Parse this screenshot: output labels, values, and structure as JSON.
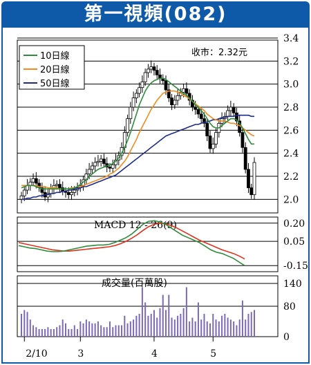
{
  "title": "第一視頻(082)",
  "chart_data": [
    {
      "type": "candlestick",
      "annotation": "收市：2.32元",
      "legend": [
        {
          "label": "10日線",
          "color": "#2e8b3a"
        },
        {
          "label": "20日線",
          "color": "#f28a1e"
        },
        {
          "label": "50日線",
          "color": "#1c2a8c"
        }
      ],
      "legend_position": "top-left",
      "y_ticks": [
        "3.4",
        "3.2",
        "3.0",
        "2.8",
        "2.6",
        "2.4",
        "2.2",
        "2.0"
      ],
      "ylim": [
        1.9,
        3.4
      ],
      "grid": true,
      "closes": [
        2.03,
        2.08,
        2.12,
        2.15,
        2.18,
        2.14,
        2.1,
        2.06,
        2.02,
        2.05,
        2.09,
        2.12,
        2.13,
        2.1,
        2.07,
        2.06,
        2.04,
        2.06,
        2.08,
        2.1,
        2.12,
        2.17,
        2.22,
        2.26,
        2.29,
        2.32,
        2.33,
        2.35,
        2.31,
        2.28,
        2.27,
        2.3,
        2.34,
        2.38,
        2.45,
        2.58,
        2.7,
        2.8,
        2.88,
        2.92,
        2.97,
        3.02,
        3.1,
        3.13,
        3.15,
        3.12,
        3.08,
        3.05,
        3.03,
        2.95,
        2.88,
        2.82,
        2.86,
        2.9,
        2.93,
        2.96,
        2.92,
        2.86,
        2.8,
        2.78,
        2.74,
        2.7,
        2.66,
        2.55,
        2.44,
        2.48,
        2.58,
        2.66,
        2.7,
        2.72,
        2.77,
        2.8,
        2.75,
        2.68,
        2.58,
        2.45,
        2.26,
        2.1,
        2.04,
        2.32
      ],
      "ma10": [
        2.1,
        2.11,
        2.12,
        2.12,
        2.12,
        2.11,
        2.1,
        2.09,
        2.09,
        2.09,
        2.09,
        2.09,
        2.09,
        2.09,
        2.09,
        2.09,
        2.09,
        2.09,
        2.1,
        2.11,
        2.13,
        2.15,
        2.17,
        2.2,
        2.22,
        2.24,
        2.26,
        2.27,
        2.28,
        2.29,
        2.3,
        2.31,
        2.33,
        2.36,
        2.4,
        2.45,
        2.51,
        2.58,
        2.66,
        2.74,
        2.82,
        2.88,
        2.94,
        2.98,
        3.01,
        3.03,
        3.04,
        3.05,
        3.05,
        3.04,
        3.02,
        3.0,
        2.98,
        2.96,
        2.94,
        2.92,
        2.9,
        2.88,
        2.85,
        2.82,
        2.8,
        2.77,
        2.74,
        2.7,
        2.66,
        2.63,
        2.62,
        2.62,
        2.64,
        2.66,
        2.68,
        2.7,
        2.7,
        2.69,
        2.66,
        2.62,
        2.57,
        2.52,
        2.48,
        2.48
      ],
      "ma20": [
        2.12,
        2.12,
        2.12,
        2.12,
        2.12,
        2.12,
        2.11,
        2.11,
        2.11,
        2.1,
        2.1,
        2.1,
        2.1,
        2.09,
        2.09,
        2.09,
        2.09,
        2.1,
        2.1,
        2.11,
        2.11,
        2.12,
        2.13,
        2.14,
        2.15,
        2.16,
        2.17,
        2.18,
        2.19,
        2.2,
        2.22,
        2.23,
        2.25,
        2.27,
        2.3,
        2.33,
        2.37,
        2.42,
        2.47,
        2.52,
        2.58,
        2.63,
        2.68,
        2.73,
        2.78,
        2.82,
        2.86,
        2.89,
        2.92,
        2.93,
        2.94,
        2.94,
        2.94,
        2.93,
        2.92,
        2.9,
        2.89,
        2.87,
        2.85,
        2.83,
        2.81,
        2.79,
        2.77,
        2.74,
        2.72,
        2.7,
        2.69,
        2.68,
        2.68,
        2.68,
        2.67,
        2.66,
        2.66,
        2.65,
        2.64,
        2.62,
        2.6,
        2.58,
        2.56,
        2.55
      ],
      "ma50": [
        2.0,
        2.0,
        2.01,
        2.01,
        2.02,
        2.02,
        2.03,
        2.03,
        2.04,
        2.04,
        2.05,
        2.05,
        2.06,
        2.06,
        2.07,
        2.07,
        2.08,
        2.08,
        2.09,
        2.09,
        2.1,
        2.11,
        2.11,
        2.12,
        2.13,
        2.14,
        2.15,
        2.16,
        2.17,
        2.18,
        2.19,
        2.2,
        2.21,
        2.23,
        2.25,
        2.27,
        2.29,
        2.31,
        2.33,
        2.35,
        2.37,
        2.39,
        2.41,
        2.43,
        2.45,
        2.47,
        2.49,
        2.51,
        2.53,
        2.55,
        2.56,
        2.57,
        2.58,
        2.59,
        2.6,
        2.61,
        2.62,
        2.63,
        2.64,
        2.65,
        2.65,
        2.66,
        2.67,
        2.67,
        2.68,
        2.69,
        2.69,
        2.7,
        2.71,
        2.71,
        2.72,
        2.72,
        2.72,
        2.73,
        2.73,
        2.73,
        2.73,
        2.73,
        2.72,
        2.72
      ]
    },
    {
      "type": "line",
      "title": "MACD 12 - 26(9)",
      "y_ticks": [
        "0.20",
        "0.05",
        "-0.15"
      ],
      "ylim": [
        -0.2,
        0.25
      ],
      "macd": [
        0.015,
        0.005,
        -0.005,
        -0.01,
        -0.02,
        -0.03,
        -0.035,
        -0.035,
        -0.03,
        -0.02,
        -0.01,
        0.0,
        0.01,
        0.015,
        0.02,
        0.02,
        0.025,
        0.04,
        0.06,
        0.08,
        0.11,
        0.15,
        0.19,
        0.215,
        0.22,
        0.21,
        0.19,
        0.16,
        0.13,
        0.1,
        0.08,
        0.06,
        0.04,
        0.01,
        -0.02,
        -0.04,
        -0.05,
        -0.07,
        -0.09,
        -0.12,
        -0.15
      ],
      "signal": [
        0.04,
        0.03,
        0.02,
        0.01,
        0.0,
        -0.01,
        -0.02,
        -0.025,
        -0.03,
        -0.03,
        -0.025,
        -0.02,
        -0.015,
        -0.01,
        -0.005,
        0.0,
        0.005,
        0.015,
        0.03,
        0.05,
        0.075,
        0.105,
        0.14,
        0.17,
        0.19,
        0.2,
        0.195,
        0.18,
        0.16,
        0.135,
        0.11,
        0.085,
        0.06,
        0.04,
        0.02,
        0.0,
        -0.02,
        -0.035,
        -0.05,
        -0.07,
        -0.095
      ]
    },
    {
      "type": "bar",
      "title": "成交量(百萬股)",
      "y_ticks": [
        "140",
        "80",
        "0"
      ],
      "ylim": [
        0,
        160
      ],
      "values": [
        60,
        70,
        65,
        45,
        30,
        25,
        20,
        20,
        20,
        25,
        20,
        20,
        25,
        30,
        45,
        35,
        20,
        20,
        30,
        20,
        40,
        35,
        45,
        40,
        35,
        35,
        40,
        30,
        25,
        25,
        40,
        25,
        30,
        30,
        30,
        55,
        35,
        40,
        45,
        55,
        60,
        130,
        90,
        55,
        60,
        70,
        50,
        75,
        110,
        70,
        110,
        50,
        45,
        55,
        60,
        75,
        130,
        40,
        50,
        40,
        90,
        45,
        60,
        40,
        35,
        60,
        45,
        40,
        55,
        60,
        50,
        45,
        40,
        30,
        45,
        95,
        45,
        60,
        65,
        70
      ],
      "x_ticks": [
        "2/10",
        "3",
        "4",
        "5"
      ],
      "x_tick_positions": [
        1,
        20,
        45,
        65
      ]
    }
  ]
}
